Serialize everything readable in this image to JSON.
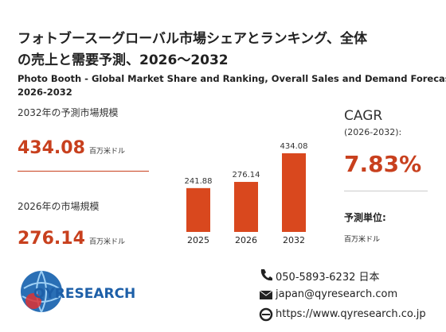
{
  "header": {
    "title_line1": "フォトブースーグローバル市場シェアとランキング、全体",
    "title_line2": "の売上と需要予測、2026～2032",
    "subtitle_line1": "Photo Booth - Global Market Share and Ranking, Overall Sales and Demand Forecast",
    "subtitle_line2": "2026-2032"
  },
  "stats": [
    {
      "label": "2032年の予測市場規模",
      "value": "434.08",
      "unit": "百万米ドル"
    },
    {
      "label": "2026年の市場規模",
      "value": "276.14",
      "unit": "百万米ドル"
    }
  ],
  "chart_data": {
    "type": "bar",
    "categories": [
      "2025",
      "2026",
      "2032"
    ],
    "values": [
      241.88,
      276.14,
      434.08
    ],
    "color": "#d9481e"
  },
  "cagr": {
    "label": "CAGR",
    "period": "(2026-2032):",
    "value": "7.83%"
  },
  "forecast_unit": {
    "label": "予測単位:",
    "value": "百万米ドル"
  },
  "logo": {
    "text": "QYRESEARCH"
  },
  "contact": {
    "phone": "050-5893-6232 日本",
    "email": "japan@qyresearch.com",
    "website": "https://www.qyresearch.co.jp"
  }
}
